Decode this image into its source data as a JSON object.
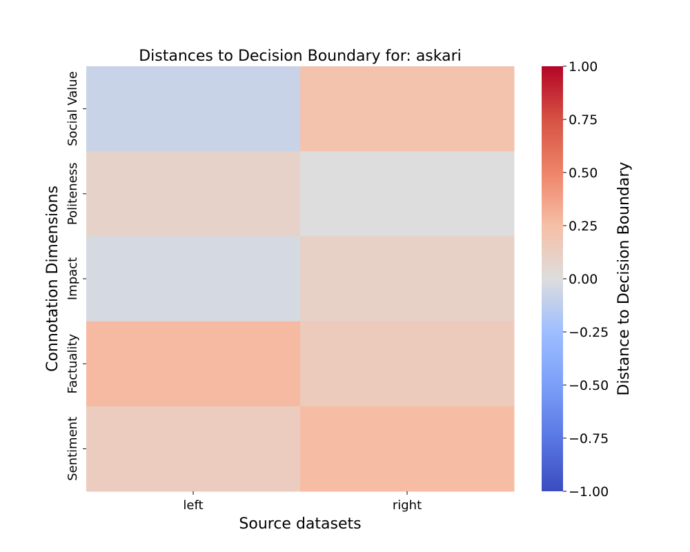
{
  "chart_data": {
    "type": "heatmap",
    "title": "Distances to Decision Boundary for: askari",
    "xlabel": "Source datasets",
    "ylabel": "Connotation Dimensions",
    "x_categories": [
      "left",
      "right"
    ],
    "y_categories": [
      "Social Value",
      "Politeness",
      "Impact",
      "Factuality",
      "Sentiment"
    ],
    "values": [
      [
        -0.08,
        0.22
      ],
      [
        0.09,
        0.0
      ],
      [
        -0.03,
        0.1
      ],
      [
        0.27,
        0.15
      ],
      [
        0.14,
        0.26
      ]
    ],
    "colorbar": {
      "label": "Distance to Decision Boundary",
      "min": -1.0,
      "max": 1.0,
      "ticks": [
        "−1.00",
        "−0.75",
        "−0.50",
        "−0.25",
        "0.00",
        "0.25",
        "0.50",
        "0.75",
        "1.00"
      ],
      "colormap": "coolwarm"
    }
  }
}
